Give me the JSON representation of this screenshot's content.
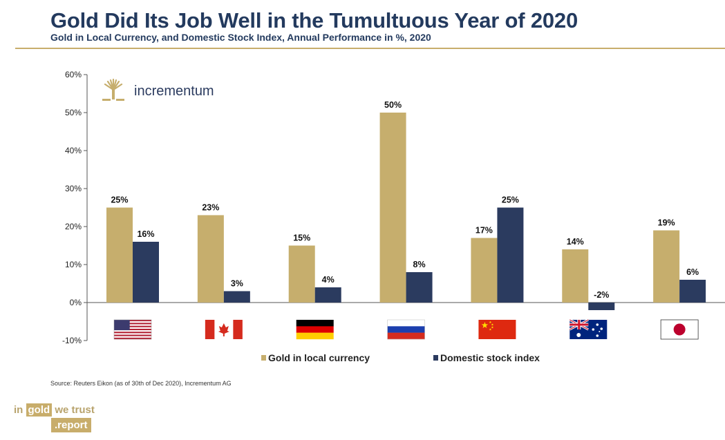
{
  "header": {
    "title": "Gold Did Its Job Well in the Tumultuous Year of 2020",
    "subtitle": "Gold in Local Currency, and Domestic Stock Index, Annual Performance in %, 2020"
  },
  "logo": {
    "name": "incrementum"
  },
  "source": "Source: Reuters Eikon (as of 30th of Dec 2020), Incrementum AG",
  "brand": {
    "in": "in",
    "gold": "gold",
    "we_trust": "we trust",
    "report": ".report"
  },
  "colors": {
    "gold": "#c6ae6d",
    "navy": "#2b3b5f",
    "accent": "#c8ad6b"
  },
  "chart_data": {
    "type": "bar",
    "title": "Gold Did Its Job Well in the Tumultuous Year of 2020",
    "xlabel": "",
    "ylabel": "",
    "ylim": [
      -10,
      60
    ],
    "yticks": [
      -10,
      0,
      10,
      20,
      30,
      40,
      50,
      60
    ],
    "ytick_labels": [
      "-10%",
      "0%",
      "10%",
      "20%",
      "30%",
      "40%",
      "50%",
      "60%"
    ],
    "categories": [
      "USA",
      "Canada",
      "Germany",
      "Russia",
      "China",
      "Australia",
      "Japan"
    ],
    "category_icons": [
      "us-flag-icon",
      "canada-flag-icon",
      "germany-flag-icon",
      "russia-flag-icon",
      "china-flag-icon",
      "australia-flag-icon",
      "japan-flag-icon"
    ],
    "series": [
      {
        "name": "Gold in local currency",
        "values": [
          25,
          23,
          15,
          50,
          17,
          14,
          19
        ],
        "labels": [
          "25%",
          "23%",
          "15%",
          "50%",
          "17%",
          "14%",
          "19%"
        ],
        "color": "#c6ae6d"
      },
      {
        "name": "Domestic stock index",
        "values": [
          16,
          3,
          4,
          8,
          25,
          -2,
          6
        ],
        "labels": [
          "16%",
          "3%",
          "4%",
          "8%",
          "25%",
          "-2%",
          "6%"
        ],
        "color": "#2b3b5f"
      }
    ],
    "legend": "bottom-center",
    "grid": false
  }
}
